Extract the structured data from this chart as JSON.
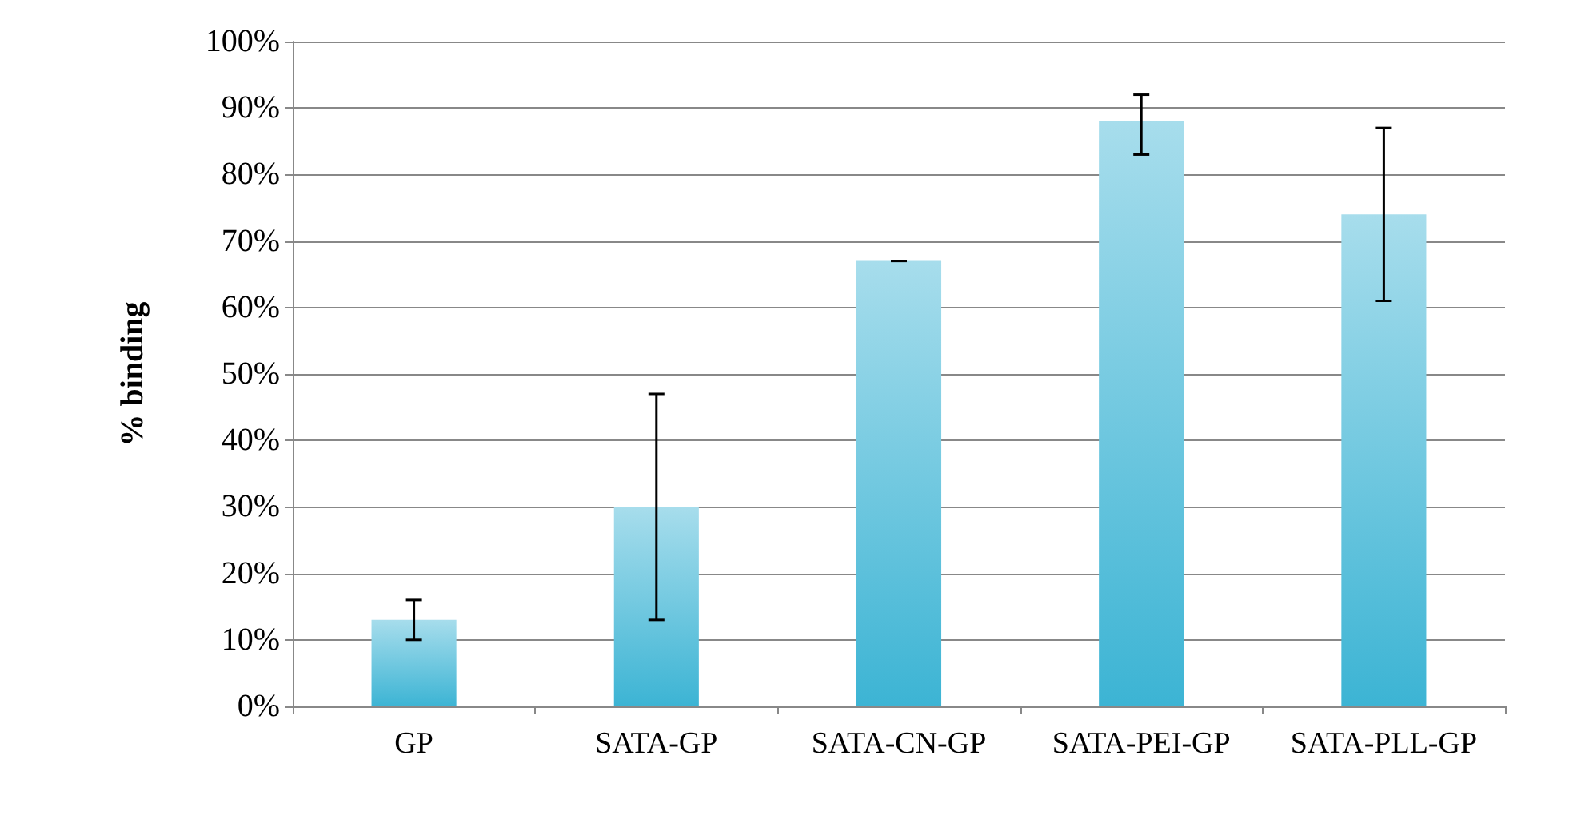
{
  "chart_data": {
    "type": "bar",
    "ylabel": "% binding",
    "categories": [
      "GP",
      "SATA-GP",
      "SATA-CN-GP",
      "SATA-PEI-GP",
      "SATA-PLL-GP"
    ],
    "values": [
      13,
      30,
      67,
      88,
      74
    ],
    "errors": [
      [
        10,
        16
      ],
      [
        13,
        47
      ],
      [
        67,
        67
      ],
      [
        83,
        92
      ],
      [
        61,
        87
      ]
    ],
    "color": "#3cb4d4",
    "ylim": [
      0,
      100
    ],
    "yticks": [
      {
        "value": 0,
        "label": "0%"
      },
      {
        "value": 10,
        "label": "10%"
      },
      {
        "value": 20,
        "label": "20%"
      },
      {
        "value": 30,
        "label": "30%"
      },
      {
        "value": 40,
        "label": "40%"
      },
      {
        "value": 50,
        "label": "50%"
      },
      {
        "value": 60,
        "label": "60%"
      },
      {
        "value": 70,
        "label": "70%"
      },
      {
        "value": 80,
        "label": "80%"
      },
      {
        "value": 90,
        "label": "90%"
      },
      {
        "value": 100,
        "label": "100%"
      }
    ],
    "grid": "y"
  }
}
